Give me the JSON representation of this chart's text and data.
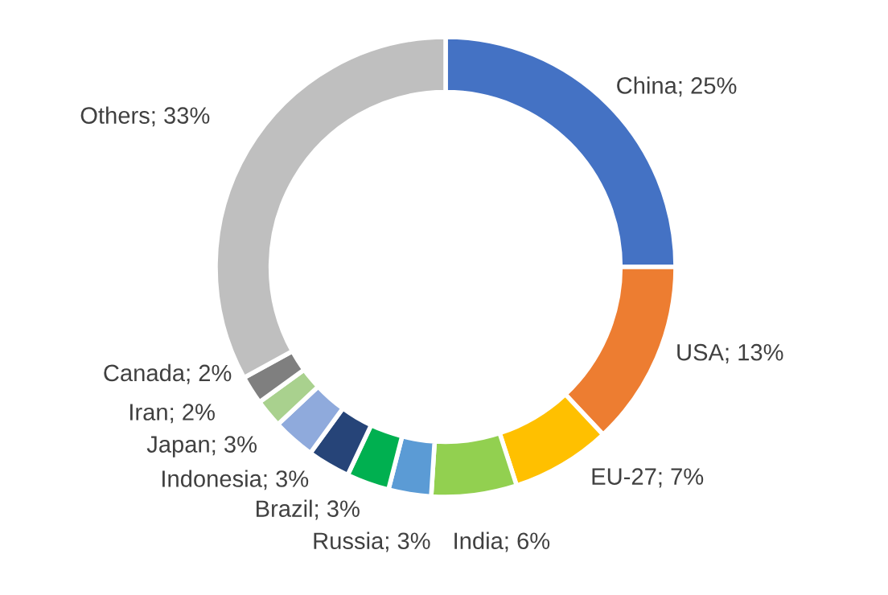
{
  "chart_data": {
    "type": "donut",
    "categories": [
      "China",
      "USA",
      "EU-27",
      "India",
      "Russia",
      "Brazil",
      "Indonesia",
      "Japan",
      "Iran",
      "Canada",
      "Others"
    ],
    "values": [
      25,
      13,
      7,
      6,
      3,
      3,
      3,
      3,
      2,
      2,
      33
    ],
    "value_labels": [
      "25%",
      "13%",
      "7%",
      "6%",
      "3%",
      "3%",
      "3%",
      "3%",
      "2%",
      "2%",
      "33%"
    ],
    "colors": [
      "#4472c4",
      "#ed7d31",
      "#ffc000",
      "#92d050",
      "#5b9bd5",
      "#00b050",
      "#264478",
      "#8faadc",
      "#a9d18e",
      "#7f7f7f",
      "#bfbfbf"
    ]
  }
}
